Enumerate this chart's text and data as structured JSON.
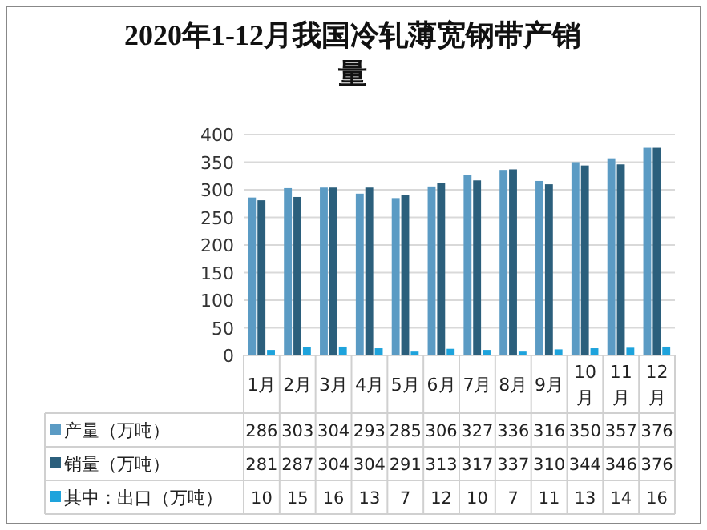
{
  "chart_data": {
    "type": "bar",
    "title": "2020年1-12月我国冷轧薄宽钢带产销量",
    "categories": [
      "1月",
      "2月",
      "3月",
      "4月",
      "5月",
      "6月",
      "7月",
      "8月",
      "9月",
      "10月",
      "11月",
      "12月"
    ],
    "series": [
      {
        "name": "产量（万吨）",
        "color": "#5b9bc4",
        "values": [
          286,
          303,
          304,
          293,
          285,
          306,
          327,
          336,
          316,
          350,
          357,
          376
        ]
      },
      {
        "name": "销量（万吨）",
        "color": "#2b5f7c",
        "values": [
          281,
          287,
          304,
          304,
          291,
          313,
          317,
          337,
          310,
          344,
          346,
          376
        ]
      },
      {
        "name": "其中：出口（万吨）",
        "color": "#1ea3dc",
        "values": [
          10,
          15,
          16,
          13,
          7,
          12,
          10,
          7,
          11,
          13,
          14,
          16
        ]
      }
    ],
    "ylim": [
      0,
      400
    ],
    "yticks": [
      0,
      50,
      100,
      150,
      200,
      250,
      300,
      350,
      400
    ],
    "grid": "y",
    "data_labels": true,
    "legend": "bottom"
  }
}
